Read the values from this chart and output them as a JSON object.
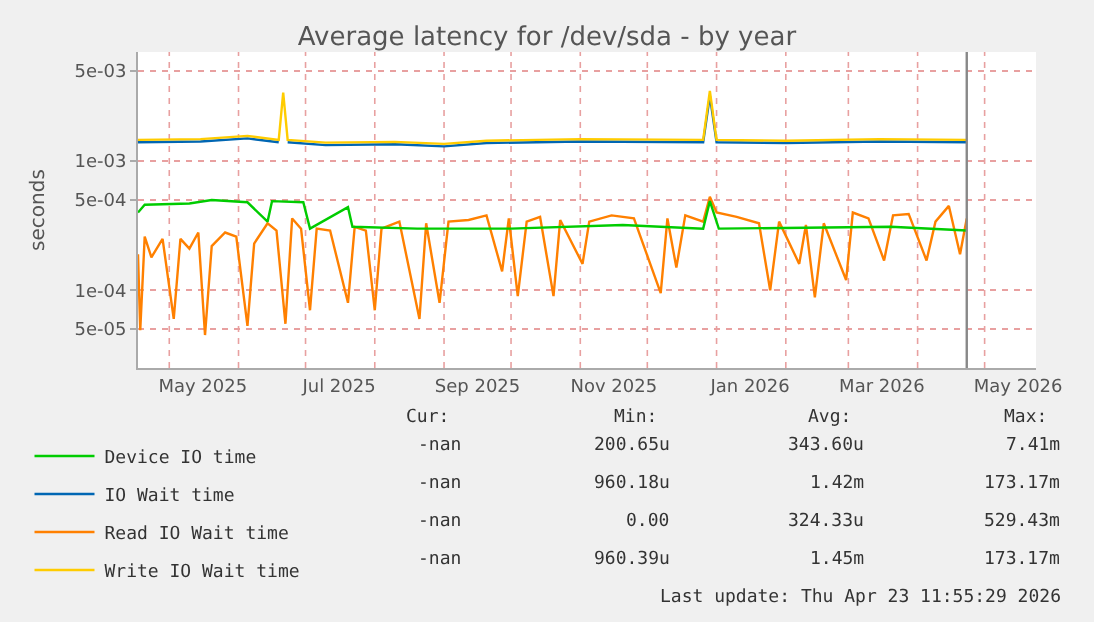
{
  "chart_data": {
    "type": "line",
    "title": "Average latency for /dev/sda - by year",
    "ylabel": "seconds",
    "log": "y",
    "grid": true,
    "legend": "bottom",
    "marker": "none",
    "line_style": "solid",
    "xlim": [
      "2025-04-17",
      "2026-05-24"
    ],
    "xticks": [
      {
        "value": "2025-05-01",
        "label": null
      },
      {
        "value": "2025-06-01",
        "label": null
      },
      {
        "value": "2025-07-01",
        "label": null
      },
      {
        "value": "2025-08-01",
        "label": null
      },
      {
        "value": "2025-09-01",
        "label": null
      },
      {
        "value": "2025-10-01",
        "label": null
      },
      {
        "value": "2025-11-01",
        "label": null
      },
      {
        "value": "2025-12-01",
        "label": null
      },
      {
        "value": "2026-01-01",
        "label": null
      },
      {
        "value": "2026-02-01",
        "label": null
      },
      {
        "value": "2026-03-01",
        "label": null
      },
      {
        "value": "2026-04-01",
        "label": null
      },
      {
        "value": "2026-05-01",
        "label": null
      },
      {
        "value": "2025-05-16",
        "label": "May 2025"
      },
      {
        "value": "2025-07-16",
        "label": "Jul 2025"
      },
      {
        "value": "2025-09-16",
        "label": "Sep 2025"
      },
      {
        "value": "2025-11-16",
        "label": "Nov 2025"
      },
      {
        "value": "2026-01-16",
        "label": "Jan 2026"
      },
      {
        "value": "2026-03-16",
        "label": "Mar 2026"
      },
      {
        "value": "2026-05-16",
        "label": "May 2026"
      }
    ],
    "ylim": [
      2.5e-05,
      0.007
    ],
    "yticks": [
      {
        "value": 5e-05,
        "label": "5e-05"
      },
      {
        "value": 0.0001,
        "label": "1e-04"
      },
      {
        "value": 0.0005,
        "label": "5e-04"
      },
      {
        "value": 0.001,
        "label": "1e-03"
      },
      {
        "value": 0.005,
        "label": "5e-03"
      }
    ],
    "ref_lines": [
      {
        "axis": "x",
        "value": "2026-04-23",
        "color": "#888888"
      }
    ],
    "series": [
      {
        "name": "Read IO Wait time",
        "color": "#ff8000",
        "x": [
          "2025-04-17",
          "2025-04-18",
          "2025-04-20",
          "2025-04-23",
          "2025-04-28",
          "2025-05-03",
          "2025-05-06",
          "2025-05-10",
          "2025-05-14",
          "2025-05-17",
          "2025-05-20",
          "2025-05-26",
          "2025-05-31",
          "2025-06-05",
          "2025-06-08",
          "2025-06-14",
          "2025-06-18",
          "2025-06-22",
          "2025-06-25",
          "2025-06-29",
          "2025-07-03",
          "2025-07-06",
          "2025-07-12",
          "2025-07-20",
          "2025-07-23",
          "2025-07-28",
          "2025-08-01",
          "2025-08-04",
          "2025-08-12",
          "2025-08-21",
          "2025-08-24",
          "2025-08-30",
          "2025-09-03",
          "2025-09-12",
          "2025-09-20",
          "2025-09-27",
          "2025-09-30",
          "2025-10-04",
          "2025-10-08",
          "2025-10-14",
          "2025-10-20",
          "2025-10-23",
          "2025-11-02",
          "2025-11-05",
          "2025-11-15",
          "2025-11-25",
          "2025-12-07",
          "2025-12-10",
          "2025-12-14",
          "2025-12-18",
          "2025-12-26",
          "2025-12-29",
          "2026-01-01",
          "2026-01-10",
          "2026-01-20",
          "2026-01-25",
          "2026-01-29",
          "2026-02-07",
          "2026-02-10",
          "2026-02-14",
          "2026-02-18",
          "2026-02-28",
          "2026-03-03",
          "2026-03-10",
          "2026-03-17",
          "2026-03-21",
          "2026-03-28",
          "2026-04-05",
          "2026-04-09",
          "2026-04-15",
          "2026-04-20",
          "2026-04-23"
        ],
        "values": [
          0.00019,
          4.9e-05,
          0.00026,
          0.00018,
          0.00025,
          6e-05,
          0.00025,
          0.00021,
          0.00028,
          4.5e-05,
          0.00022,
          0.00028,
          0.00026,
          5.3e-05,
          0.00023,
          0.00033,
          0.00029,
          5.5e-05,
          0.00036,
          0.0003,
          7e-05,
          0.0003,
          0.00029,
          8e-05,
          0.00031,
          0.00029,
          7e-05,
          0.0003,
          0.00034,
          6e-05,
          0.00033,
          8e-05,
          0.00034,
          0.00035,
          0.00038,
          0.00014,
          0.00036,
          9e-05,
          0.00034,
          0.00037,
          9e-05,
          0.00035,
          0.00016,
          0.00034,
          0.00038,
          0.00036,
          9.5e-05,
          0.00036,
          0.00015,
          0.00038,
          0.00034,
          0.00053,
          0.0004,
          0.00037,
          0.00033,
          0.0001,
          0.00034,
          0.00016,
          0.00032,
          8.8e-05,
          0.00033,
          0.00012,
          0.0004,
          0.00036,
          0.00017,
          0.00038,
          0.00039,
          0.00017,
          0.00034,
          0.00045,
          0.00019,
          0.00036
        ]
      },
      {
        "name": "Device IO time",
        "color": "#00cc00",
        "x": [
          "2025-04-17",
          "2025-04-20",
          "2025-05-10",
          "2025-05-20",
          "2025-06-05",
          "2025-06-14",
          "2025-06-16",
          "2025-06-30",
          "2025-07-03",
          "2025-07-20",
          "2025-07-22",
          "2025-08-20",
          "2025-10-01",
          "2025-11-20",
          "2025-12-26",
          "2025-12-29",
          "2026-01-02",
          "2026-03-20",
          "2026-04-23"
        ],
        "values": [
          0.0004,
          0.00046,
          0.00047,
          0.0005,
          0.00048,
          0.00034,
          0.00049,
          0.00048,
          0.0003,
          0.00044,
          0.00031,
          0.0003,
          0.0003,
          0.00032,
          0.0003,
          0.00049,
          0.0003,
          0.00031,
          0.00029
        ]
      },
      {
        "name": "IO Wait time",
        "color": "#0066b3",
        "x": [
          "2025-04-17",
          "2025-05-15",
          "2025-06-05",
          "2025-06-19",
          "2025-06-21",
          "2025-06-23",
          "2025-07-10",
          "2025-08-10",
          "2025-09-01",
          "2025-09-20",
          "2025-11-01",
          "2025-12-26",
          "2025-12-29",
          "2026-01-01",
          "2026-02-01",
          "2026-03-15",
          "2026-04-23"
        ],
        "values": [
          0.0014,
          0.00142,
          0.0015,
          0.0014,
          null,
          0.0014,
          0.00133,
          0.00135,
          0.0013,
          0.00138,
          0.00142,
          0.0014,
          0.0032,
          0.0014,
          0.00138,
          0.00142,
          0.0014
        ]
      },
      {
        "name": "Write IO Wait time",
        "color": "#ffcc00",
        "x": [
          "2025-04-17",
          "2025-05-15",
          "2025-06-05",
          "2025-06-19",
          "2025-06-21",
          "2025-06-23",
          "2025-07-10",
          "2025-08-10",
          "2025-09-01",
          "2025-09-20",
          "2025-11-01",
          "2025-12-26",
          "2025-12-29",
          "2026-01-01",
          "2026-02-01",
          "2026-03-15",
          "2026-04-23"
        ],
        "values": [
          0.00146,
          0.00148,
          0.00157,
          0.00146,
          0.0034,
          0.00146,
          0.00139,
          0.00141,
          0.00136,
          0.00144,
          0.00148,
          0.00146,
          0.0035,
          0.00146,
          0.00144,
          0.00148,
          0.00146
        ]
      }
    ],
    "annotations": [
      "Cur:",
      "Min:",
      "Avg:",
      "Max:",
      "-nan",
      "200.65u",
      "343.60u",
      "7.41m",
      "-nan",
      "960.18u",
      "1.42m",
      "173.17m",
      "-nan",
      "0.00",
      "324.33u",
      "529.43m",
      "-nan",
      "960.39u",
      "1.45m",
      "173.17m",
      "Last update: Thu Apr 23 11:55:29 2026"
    ]
  }
}
